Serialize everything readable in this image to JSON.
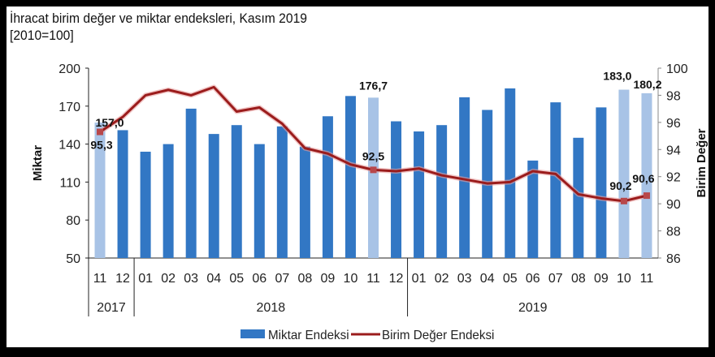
{
  "title": "İhracat birim değer ve miktar endeksleri, Kasım 2019",
  "subtitle": "[2010=100]",
  "chart_data": {
    "type": "bar+line",
    "categories": [
      "11",
      "12",
      "01",
      "02",
      "03",
      "04",
      "05",
      "06",
      "07",
      "08",
      "09",
      "10",
      "11",
      "12",
      "01",
      "02",
      "03",
      "04",
      "05",
      "06",
      "07",
      "08",
      "09",
      "10",
      "11"
    ],
    "year_groups": [
      {
        "label": "2017",
        "span": 2
      },
      {
        "label": "2018",
        "span": 12
      },
      {
        "label": "2019",
        "span": 11
      }
    ],
    "series": [
      {
        "name": "Miktar Endeksi",
        "type": "bar",
        "axis": "left",
        "color": "#3277c4",
        "highlight_color": "#a8c3e6",
        "highlight_indices": [
          0,
          12,
          23,
          24
        ],
        "values": [
          157.0,
          151,
          134,
          140,
          168,
          148,
          155,
          140,
          154,
          138,
          162,
          178,
          176.7,
          158,
          150,
          155,
          177,
          167,
          184,
          127,
          173,
          145,
          169,
          183.0,
          180.2
        ],
        "data_labels": {
          "0": "157,0",
          "12": "176,7",
          "23": "183,0",
          "24": "180,2"
        }
      },
      {
        "name": "Birim Değer Endeksi",
        "type": "line",
        "axis": "right",
        "color": "#9b1c1c",
        "values": [
          95.3,
          96.4,
          98.0,
          98.4,
          98.0,
          98.6,
          96.8,
          97.1,
          95.9,
          94.1,
          93.7,
          92.9,
          92.5,
          92.4,
          92.6,
          92.1,
          91.8,
          91.5,
          91.6,
          92.4,
          92.2,
          90.7,
          90.4,
          90.2,
          90.6
        ],
        "data_labels": {
          "0": "95,3",
          "12": "92,5",
          "23": "90,2",
          "24": "90,6"
        }
      }
    ],
    "ylabel": "Miktar",
    "y2label": "Birim Değer",
    "ylim": [
      50,
      200
    ],
    "yticks": [
      50,
      80,
      110,
      140,
      170,
      200
    ],
    "y2lim": [
      86,
      100
    ],
    "y2ticks": [
      86,
      88,
      90,
      92,
      94,
      96,
      98,
      100
    ],
    "grid": false,
    "legend": "bottom"
  }
}
